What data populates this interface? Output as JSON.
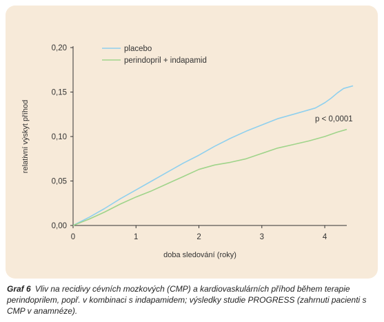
{
  "colors": {
    "panel_background": "#f7ead9",
    "axis": "#333333",
    "placebo": "#8fd0ee",
    "combo": "#9fd48a"
  },
  "chart_data": {
    "type": "line",
    "xlabel": "doba sledování (roky)",
    "ylabel": "relativní výskyt příhod",
    "xlim": [
      0,
      4.35
    ],
    "ylim": [
      0,
      0.2
    ],
    "x_ticks": [
      "0",
      "1",
      "2",
      "3",
      "4"
    ],
    "y_ticks": [
      "0,00",
      "0,05",
      "0,10",
      "0,15",
      "0,20"
    ],
    "annotation": "p < 0,0001",
    "legend_position": "top-left",
    "series": [
      {
        "name": "placebo",
        "color": "#8fd0ee",
        "x": [
          0,
          0.25,
          0.5,
          0.75,
          1.0,
          1.25,
          1.5,
          1.75,
          2.0,
          2.25,
          2.5,
          2.75,
          3.0,
          3.25,
          3.5,
          3.75,
          3.85,
          4.0,
          4.1,
          4.2,
          4.3,
          4.45
        ],
        "values": [
          0.0,
          0.009,
          0.019,
          0.03,
          0.04,
          0.05,
          0.06,
          0.07,
          0.079,
          0.089,
          0.098,
          0.106,
          0.113,
          0.12,
          0.125,
          0.13,
          0.132,
          0.138,
          0.143,
          0.149,
          0.154,
          0.157
        ]
      },
      {
        "name": "perindopril + indapamid",
        "color": "#9fd48a",
        "x": [
          0,
          0.25,
          0.5,
          0.75,
          1.0,
          1.25,
          1.5,
          1.75,
          2.0,
          2.25,
          2.5,
          2.75,
          3.0,
          3.25,
          3.5,
          3.75,
          4.0,
          4.2,
          4.35
        ],
        "values": [
          0.0,
          0.007,
          0.015,
          0.024,
          0.032,
          0.039,
          0.047,
          0.055,
          0.063,
          0.068,
          0.071,
          0.075,
          0.081,
          0.087,
          0.091,
          0.095,
          0.1,
          0.105,
          0.108
        ]
      }
    ]
  },
  "caption": {
    "label": "Graf 6",
    "text": "Vliv na recidivy cévních mozkových (CMP) a kardiovaskulárních příhod během terapie perindoprilem, popř. v kombinaci s indapamidem; výsledky studie PROGRESS (zahrnuti pacienti s CMP v anamnéze)."
  }
}
